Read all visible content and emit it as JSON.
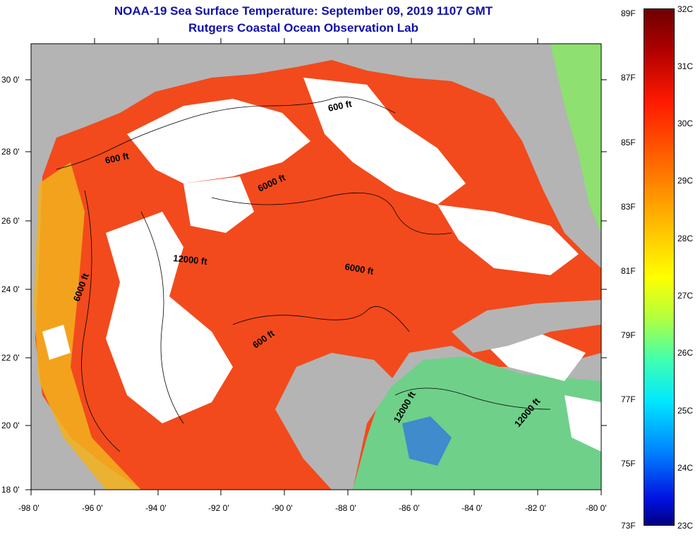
{
  "title_line1": "NOAA-19 Sea Surface Temperature:  September 09, 2019 1107 GMT",
  "title_line2": "Rutgers Coastal Ocean Observation Lab",
  "axes": {
    "lat_labels": [
      "30 0'",
      "28 0'",
      "26 0'",
      "24 0'",
      "22 0'",
      "20 0'",
      "18 0'"
    ],
    "lon_labels": [
      "-98 0'",
      "-96 0'",
      "-94 0'",
      "-92 0'",
      "-90 0'",
      "-88 0'",
      "-86 0'",
      "-84 0'",
      "-82 0'",
      "-80 0'"
    ]
  },
  "contour_labels": [
    "600 ft",
    "600 ft",
    "6000 ft",
    "12000 ft",
    "6000 ft",
    "6000 ft",
    "600 ft",
    "12000 ft",
    "12000 ft"
  ],
  "colorbar": {
    "fahrenheit": [
      "89F",
      "87F",
      "85F",
      "83F",
      "81F",
      "79F",
      "77F",
      "75F",
      "73F"
    ],
    "celsius": [
      "32C",
      "31C",
      "30C",
      "29C",
      "28C",
      "27C",
      "26C",
      "25C",
      "24C",
      "23C"
    ]
  },
  "colors": {
    "land": "#b4b4b4",
    "cloud": "#ffffff",
    "title": "#1010a8"
  }
}
